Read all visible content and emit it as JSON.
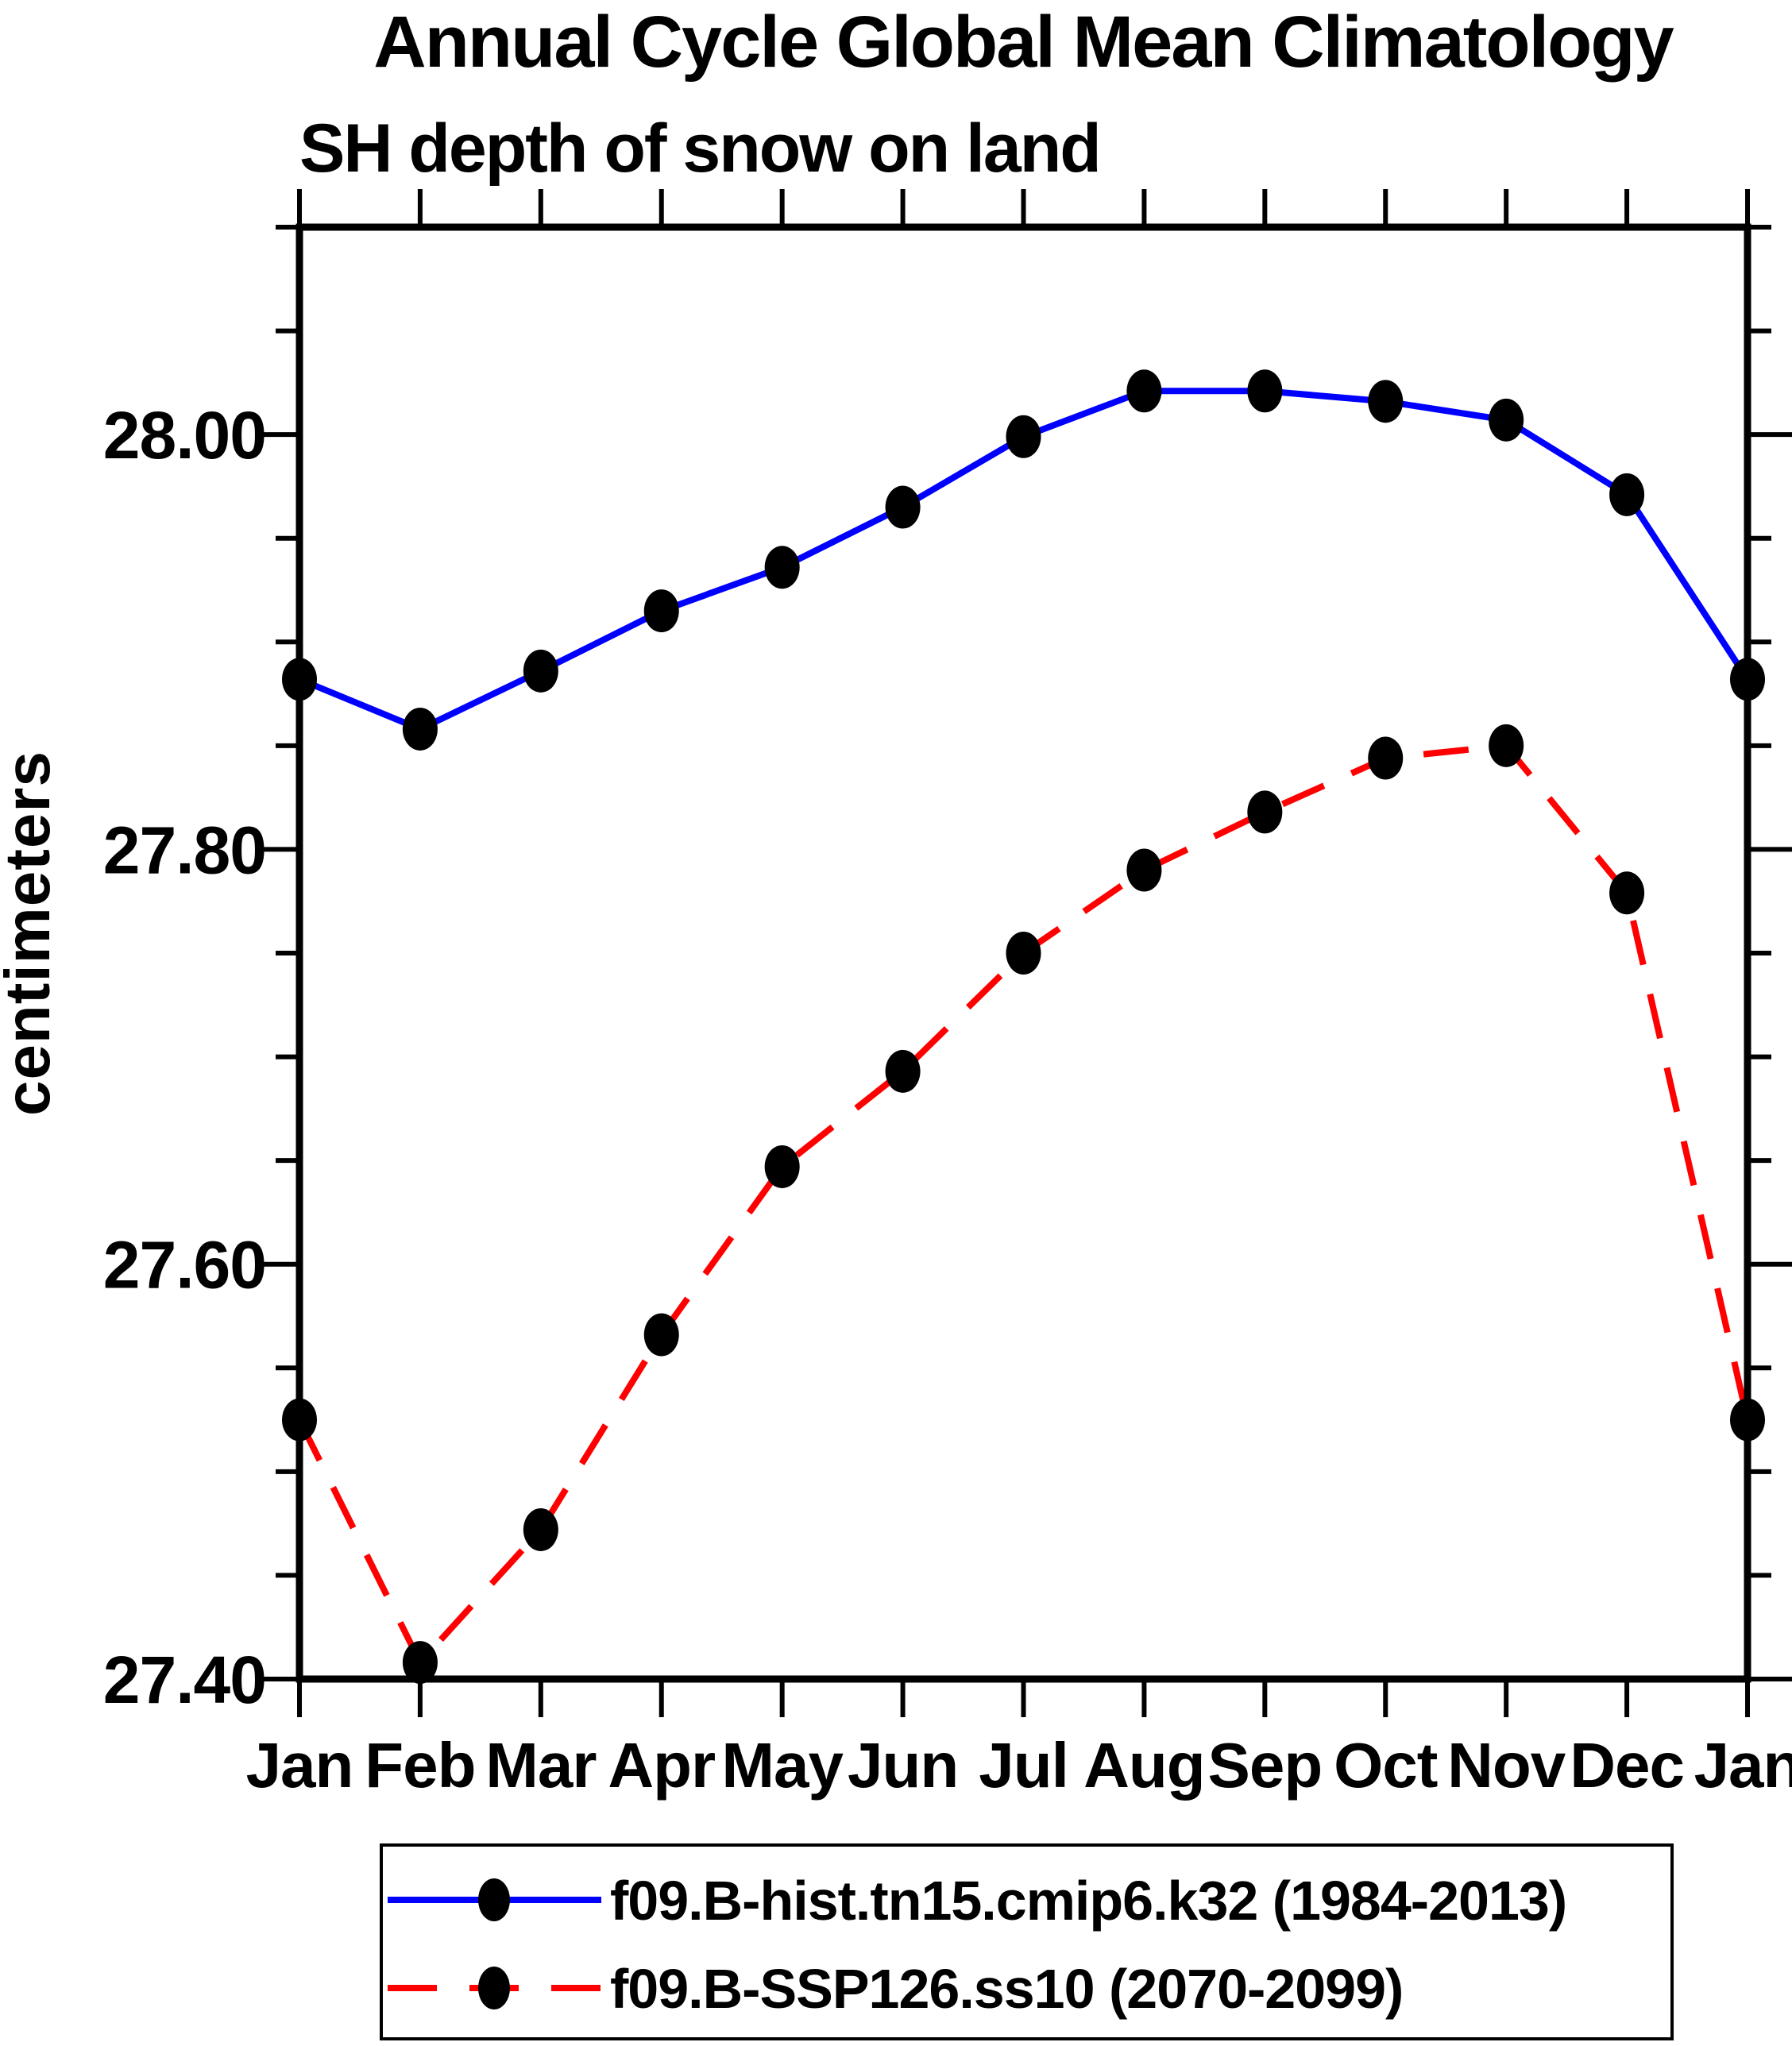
{
  "title": "Annual Cycle Global Mean Climatology",
  "subtitle": "SH depth of snow on land",
  "chart_data": {
    "type": "line",
    "title": "Annual Cycle Global Mean Climatology",
    "subtitle": "SH depth of snow on land",
    "ylabel": "centimeters",
    "xlabel": "",
    "categories": [
      "Jan",
      "Feb",
      "Mar",
      "Apr",
      "May",
      "Jun",
      "Jul",
      "Aug",
      "Sep",
      "Oct",
      "Nov",
      "Dec",
      "Jan"
    ],
    "ylim": [
      27.4,
      28.1
    ],
    "ytick_major_labels": [
      "27.40",
      "27.60",
      "27.80",
      "28.00"
    ],
    "ytick_minor_step": 0.05,
    "grid": false,
    "legend_position": "bottom-center",
    "marker": "black-filled-dot",
    "marker_color": "#000000",
    "axis_color": "#000000",
    "series": [
      {
        "name": "f09.B-hist.tn15.cmip6.k32 (1984-2013)",
        "color": "#0000ff",
        "line_style": "solid",
        "values": [
          27.882,
          27.858,
          27.886,
          27.915,
          27.936,
          27.965,
          27.999,
          28.021,
          28.021,
          28.016,
          28.007,
          27.971,
          27.882
        ]
      },
      {
        "name": "f09.B-SSP126.ss10 (2070-2099)",
        "color": "#ff0000",
        "line_style": "dashed",
        "values": [
          27.525,
          27.408,
          27.472,
          27.566,
          27.647,
          27.693,
          27.75,
          27.79,
          27.818,
          27.844,
          27.85,
          27.779,
          27.525
        ]
      }
    ]
  }
}
